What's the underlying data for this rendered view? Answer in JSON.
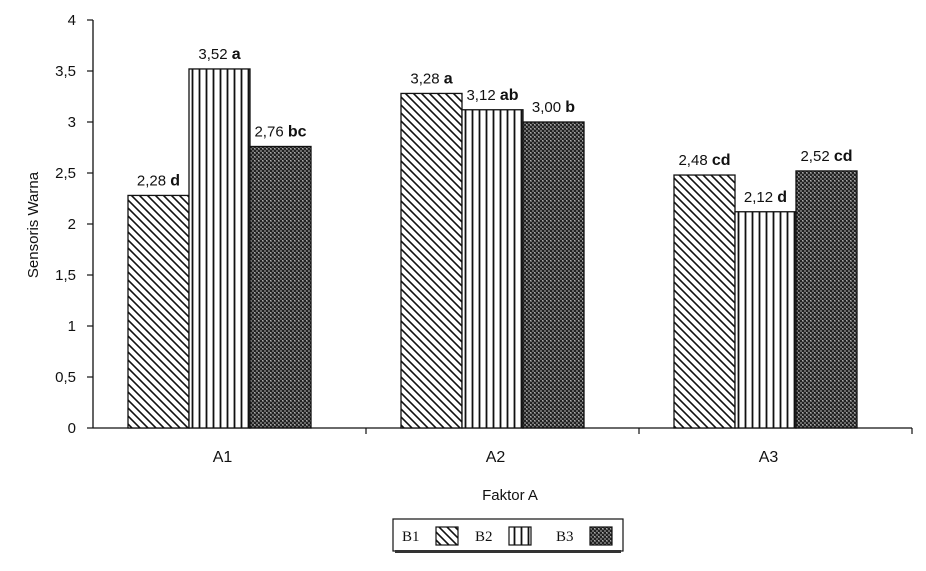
{
  "chart_data": {
    "type": "bar",
    "categories": [
      "A1",
      "A2",
      "A3"
    ],
    "series": [
      {
        "name": "B1",
        "values": [
          2.28,
          3.28,
          2.48
        ],
        "labels": [
          "2,28",
          "3,28",
          "2,48"
        ],
        "letters": [
          "d",
          "a",
          "cd"
        ],
        "pattern": "diagonal-hatch"
      },
      {
        "name": "B2",
        "values": [
          3.52,
          3.12,
          2.12
        ],
        "labels": [
          "3,52",
          "3,12",
          "2,12"
        ],
        "letters": [
          "a",
          "ab",
          "d"
        ],
        "pattern": "vertical-stripes"
      },
      {
        "name": "B3",
        "values": [
          2.76,
          3.0,
          2.52
        ],
        "labels": [
          "2,76",
          "3,00",
          "2,52"
        ],
        "letters": [
          "bc",
          "b",
          "cd"
        ],
        "pattern": "crosshatch-dark"
      }
    ],
    "xlabel": "Faktor A",
    "ylabel": "Sensoris Warna",
    "ylim": [
      0,
      4
    ],
    "yticks": [
      0,
      0.5,
      1,
      1.5,
      2,
      2.5,
      3,
      3.5,
      4
    ],
    "ytick_labels": [
      "0",
      "0,5",
      "1",
      "1,5",
      "2",
      "2,5",
      "3",
      "3,5",
      "4"
    ],
    "grid": false,
    "legend_position": "bottom-center",
    "colors": {
      "bar_fill": "#ffffff",
      "ink": "#111111"
    }
  }
}
